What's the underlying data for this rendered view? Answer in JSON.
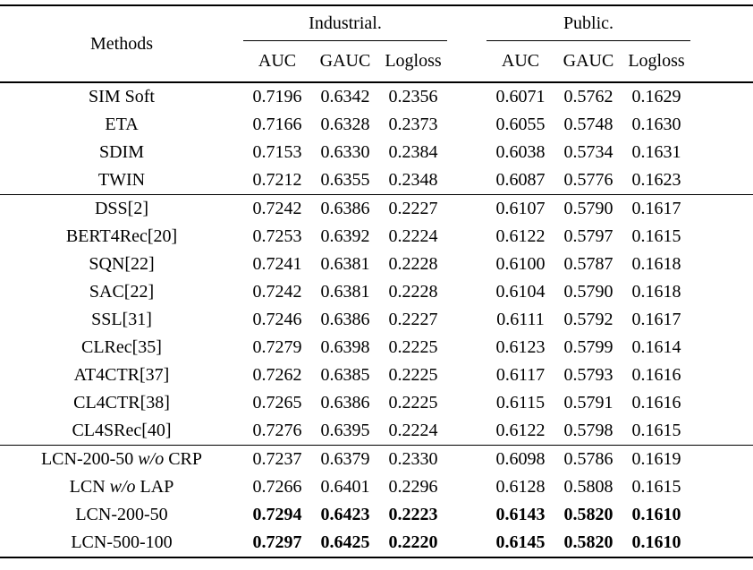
{
  "page": {
    "background_color": "#ffffff",
    "text_color": "#000000"
  },
  "table": {
    "methods_header": "Methods",
    "groups_header": [
      {
        "label": "Industrial.",
        "metrics": [
          "AUC",
          "GAUC",
          "Logloss"
        ]
      },
      {
        "label": "Public.",
        "metrics": [
          "AUC",
          "GAUC",
          "Logloss"
        ]
      }
    ],
    "row_groups": [
      [
        {
          "method": "SIM Soft",
          "values": [
            "0.7196",
            "0.6342",
            "0.2356",
            "0.6071",
            "0.5762",
            "0.1629"
          ],
          "bold": false
        },
        {
          "method": "ETA",
          "values": [
            "0.7166",
            "0.6328",
            "0.2373",
            "0.6055",
            "0.5748",
            "0.1630"
          ],
          "bold": false
        },
        {
          "method": "SDIM",
          "values": [
            "0.7153",
            "0.6330",
            "0.2384",
            "0.6038",
            "0.5734",
            "0.1631"
          ],
          "bold": false
        },
        {
          "method": "TWIN",
          "values": [
            "0.7212",
            "0.6355",
            "0.2348",
            "0.6087",
            "0.5776",
            "0.1623"
          ],
          "bold": false
        }
      ],
      [
        {
          "method": "DSS[2]",
          "values": [
            "0.7242",
            "0.6386",
            "0.2227",
            "0.6107",
            "0.5790",
            "0.1617"
          ],
          "bold": false
        },
        {
          "method": "BERT4Rec[20]",
          "values": [
            "0.7253",
            "0.6392",
            "0.2224",
            "0.6122",
            "0.5797",
            "0.1615"
          ],
          "bold": false
        },
        {
          "method": "SQN[22]",
          "values": [
            "0.7241",
            "0.6381",
            "0.2228",
            "0.6100",
            "0.5787",
            "0.1618"
          ],
          "bold": false
        },
        {
          "method": "SAC[22]",
          "values": [
            "0.7242",
            "0.6381",
            "0.2228",
            "0.6104",
            "0.5790",
            "0.1618"
          ],
          "bold": false
        },
        {
          "method": "SSL[31]",
          "values": [
            "0.7246",
            "0.6386",
            "0.2227",
            "0.6111",
            "0.5792",
            "0.1617"
          ],
          "bold": false
        },
        {
          "method": "CLRec[35]",
          "values": [
            "0.7279",
            "0.6398",
            "0.2225",
            "0.6123",
            "0.5799",
            "0.1614"
          ],
          "bold": false
        },
        {
          "method": "AT4CTR[37]",
          "values": [
            "0.7262",
            "0.6385",
            "0.2225",
            "0.6117",
            "0.5793",
            "0.1616"
          ],
          "bold": false
        },
        {
          "method": "CL4CTR[38]",
          "values": [
            "0.7265",
            "0.6386",
            "0.2225",
            "0.6115",
            "0.5791",
            "0.1616"
          ],
          "bold": false
        },
        {
          "method": "CL4SRec[40]",
          "values": [
            "0.7276",
            "0.6395",
            "0.2224",
            "0.6122",
            "0.5798",
            "0.1615"
          ],
          "bold": false
        }
      ],
      [
        {
          "method": "LCN-200-50 w/o CRP",
          "values": [
            "0.7237",
            "0.6379",
            "0.2330",
            "0.6098",
            "0.5786",
            "0.1619"
          ],
          "bold": false
        },
        {
          "method": "LCN w/o LAP",
          "values": [
            "0.7266",
            "0.6401",
            "0.2296",
            "0.6128",
            "0.5808",
            "0.1615"
          ],
          "bold": false
        },
        {
          "method": "LCN-200-50",
          "values": [
            "0.7294",
            "0.6423",
            "0.2223",
            "0.6143",
            "0.5820",
            "0.1610"
          ],
          "bold": true
        },
        {
          "method": "LCN-500-100",
          "values": [
            "0.7297",
            "0.6425",
            "0.2220",
            "0.6145",
            "0.5820",
            "0.1610"
          ],
          "bold": true
        }
      ]
    ]
  }
}
